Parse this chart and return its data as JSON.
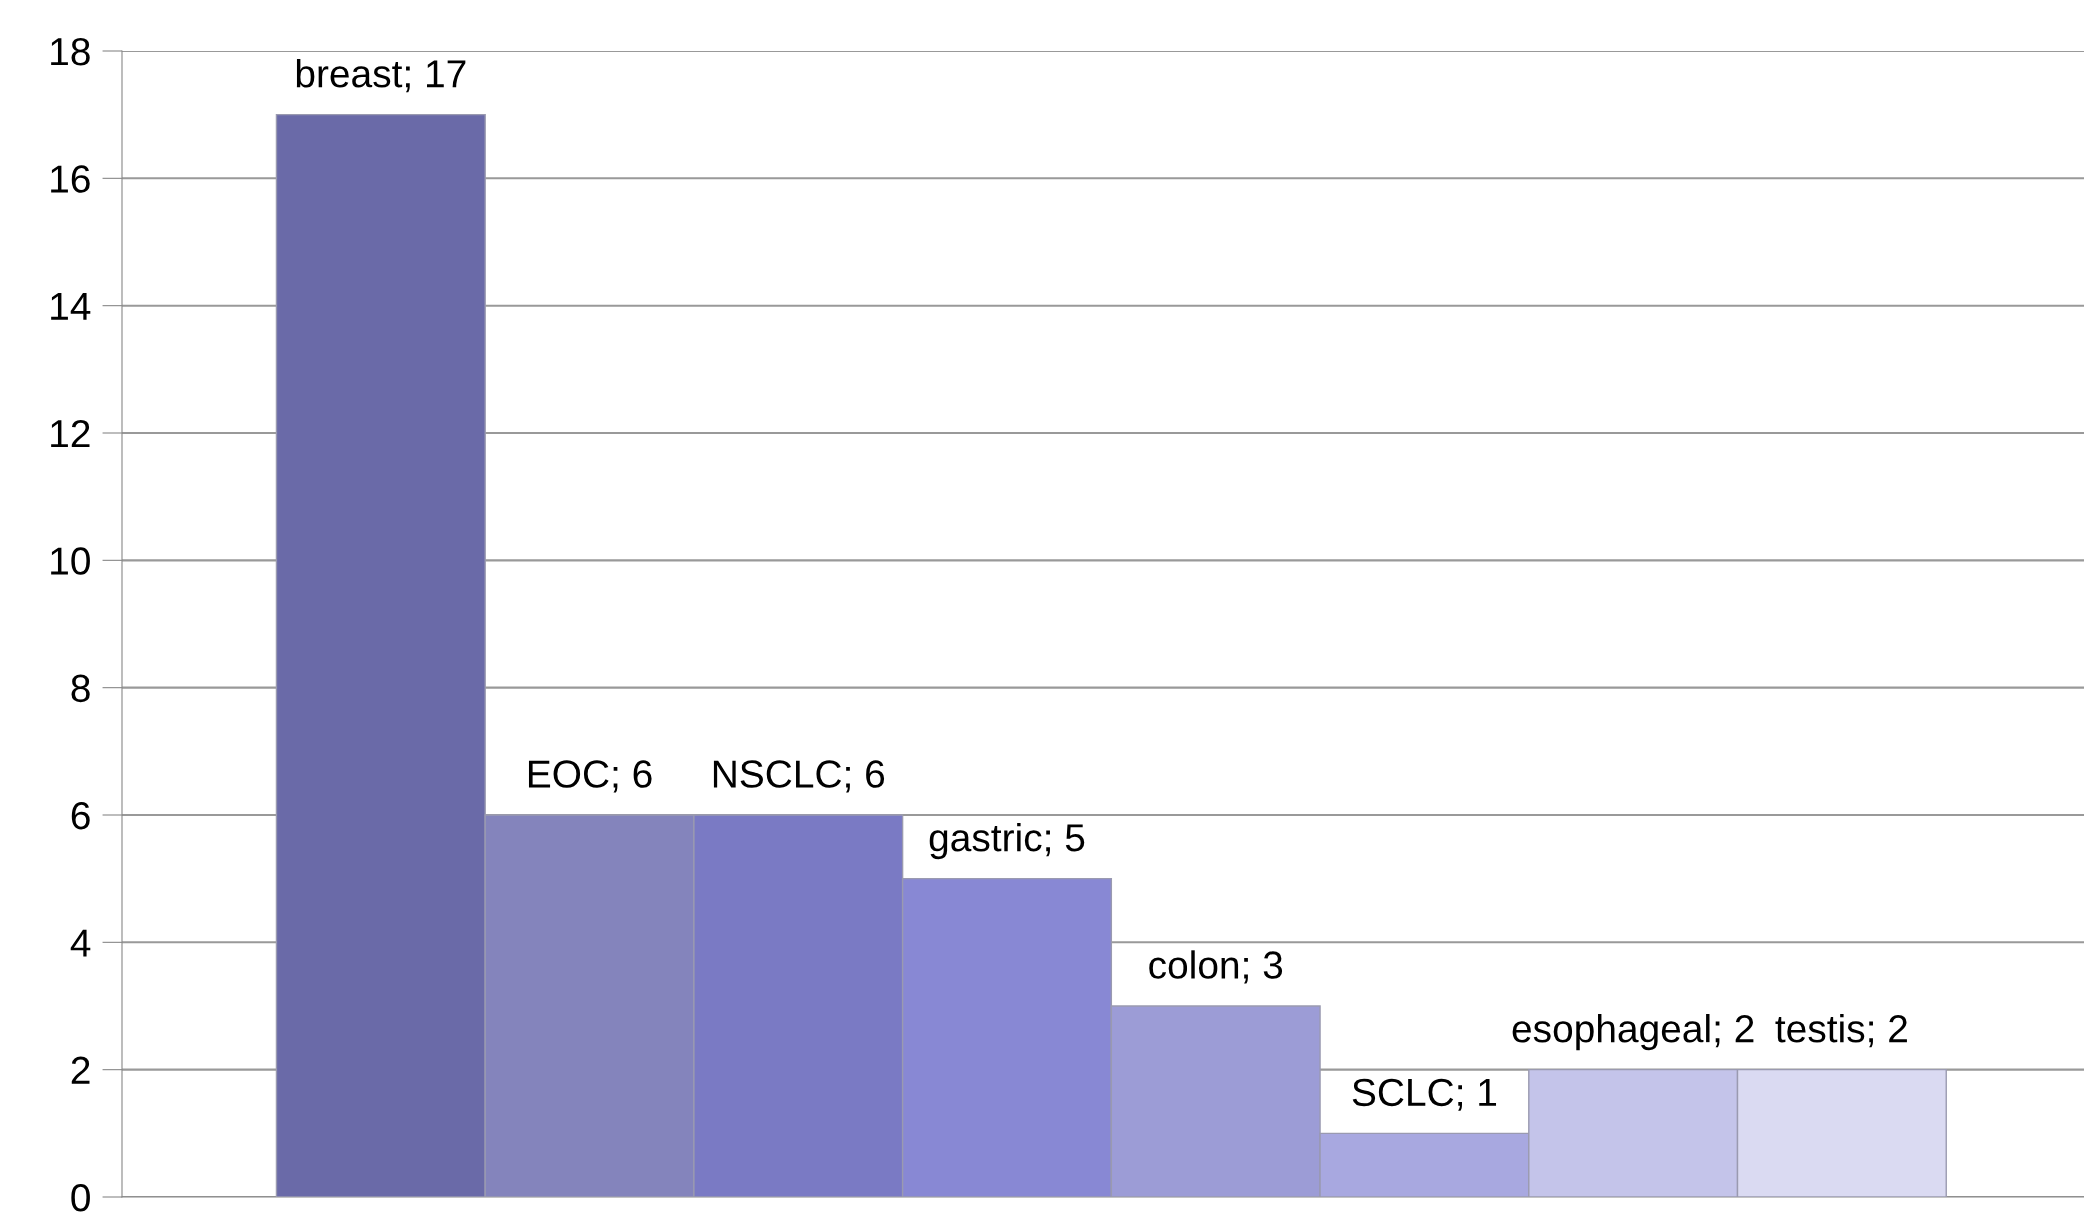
{
  "chart_data": {
    "type": "bar",
    "categories": [
      null,
      null,
      null,
      null,
      null,
      null,
      null,
      null
    ],
    "values": [
      17,
      6,
      6,
      5,
      3,
      1,
      2,
      2
    ],
    "value_labels": [
      "breast; 17",
      "EOC; 6",
      "NSCLC; 6",
      "gastric; 5",
      "colon; 3",
      "SCLC; 1",
      "esophageal; 2",
      "testis; 2"
    ],
    "colors": [
      "#6a6aa8",
      "#8484bc",
      "#7a7ac4",
      "#8888d4",
      "#9c9cd6",
      "#a8a8e0",
      "#c4c4ea",
      "#dadaf2"
    ],
    "ylim": [
      0,
      18
    ],
    "yticks": [
      0,
      2,
      4,
      6,
      8,
      10,
      12,
      14,
      16,
      18
    ],
    "grid": "y"
  }
}
